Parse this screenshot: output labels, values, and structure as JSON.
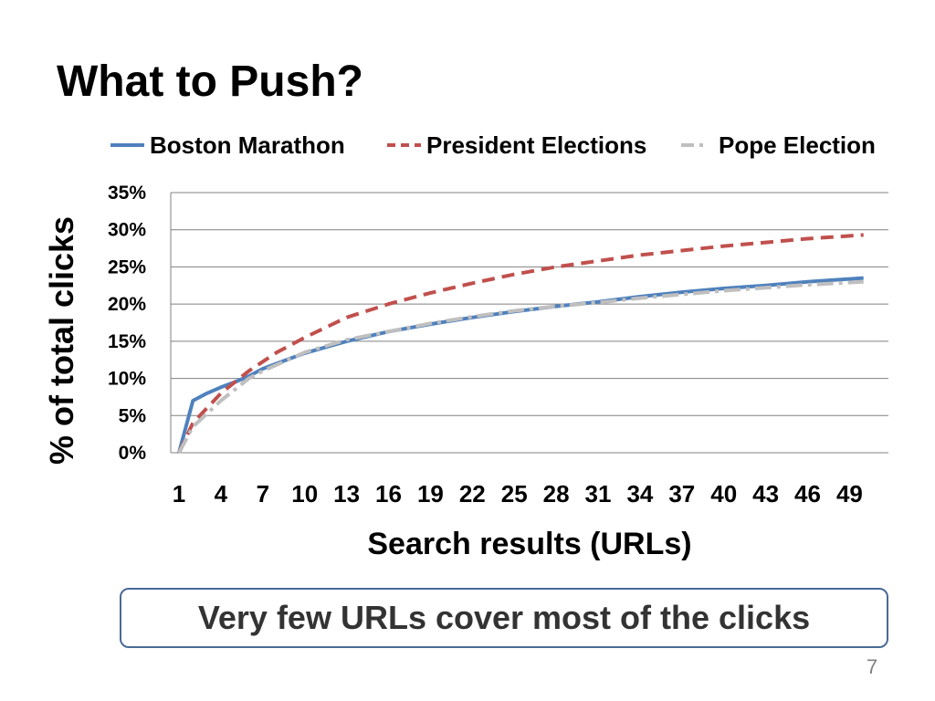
{
  "slide": {
    "title": "What to Push?",
    "callout": "Very few URLs cover most of the clicks",
    "page_number": "7"
  },
  "colors": {
    "boston": "#4f81bd",
    "president": "#c0504d",
    "pope": "#bfbfbf",
    "grid": "#808080",
    "callout_border": "#4a6a96"
  },
  "chart_data": {
    "type": "line",
    "title": "",
    "xlabel": "Search results (URLs)",
    "ylabel": "% of total clicks",
    "ylim": [
      0,
      35
    ],
    "xlim": [
      1,
      50
    ],
    "y_ticks": [
      "0%",
      "5%",
      "10%",
      "15%",
      "20%",
      "25%",
      "30%",
      "35%"
    ],
    "x_ticks": [
      "1",
      "4",
      "7",
      "10",
      "13",
      "16",
      "19",
      "22",
      "25",
      "28",
      "31",
      "34",
      "37",
      "40",
      "43",
      "46",
      "49"
    ],
    "grid": true,
    "legend_position": "top",
    "series": [
      {
        "name": "Boston Marathon",
        "style": "solid",
        "color_key": "boston",
        "points": [
          [
            1,
            0
          ],
          [
            2,
            7
          ],
          [
            3,
            8
          ],
          [
            4,
            8.8
          ],
          [
            5,
            9.5
          ],
          [
            6,
            10.3
          ],
          [
            7,
            11.3
          ],
          [
            8,
            12
          ],
          [
            10,
            13.4
          ],
          [
            13,
            15
          ],
          [
            16,
            16.3
          ],
          [
            19,
            17.3
          ],
          [
            22,
            18.2
          ],
          [
            25,
            19
          ],
          [
            28,
            19.7
          ],
          [
            31,
            20.3
          ],
          [
            34,
            21
          ],
          [
            37,
            21.6
          ],
          [
            40,
            22.1
          ],
          [
            43,
            22.5
          ],
          [
            46,
            23
          ],
          [
            50,
            23.5
          ]
        ]
      },
      {
        "name": "President Elections",
        "style": "dashed",
        "color_key": "president",
        "points": [
          [
            1,
            0
          ],
          [
            2,
            4
          ],
          [
            4,
            8
          ],
          [
            6,
            11
          ],
          [
            8,
            13.5
          ],
          [
            10,
            15.5
          ],
          [
            13,
            18.2
          ],
          [
            16,
            20
          ],
          [
            19,
            21.5
          ],
          [
            22,
            22.8
          ],
          [
            25,
            24
          ],
          [
            28,
            25
          ],
          [
            31,
            25.8
          ],
          [
            34,
            26.6
          ],
          [
            37,
            27.2
          ],
          [
            40,
            27.8
          ],
          [
            43,
            28.3
          ],
          [
            46,
            28.8
          ],
          [
            50,
            29.3
          ]
        ]
      },
      {
        "name": "Pope Election",
        "style": "dashdot",
        "color_key": "pope",
        "points": [
          [
            1,
            0
          ],
          [
            2,
            3.5
          ],
          [
            4,
            7
          ],
          [
            6,
            10
          ],
          [
            7,
            11
          ],
          [
            10,
            13.5
          ],
          [
            13,
            15.2
          ],
          [
            16,
            16.3
          ],
          [
            19,
            17.4
          ],
          [
            22,
            18.3
          ],
          [
            25,
            19.1
          ],
          [
            28,
            19.7
          ],
          [
            31,
            20.2
          ],
          [
            34,
            20.8
          ],
          [
            37,
            21.3
          ],
          [
            40,
            21.8
          ],
          [
            43,
            22.2
          ],
          [
            46,
            22.6
          ],
          [
            50,
            23
          ]
        ]
      }
    ]
  }
}
